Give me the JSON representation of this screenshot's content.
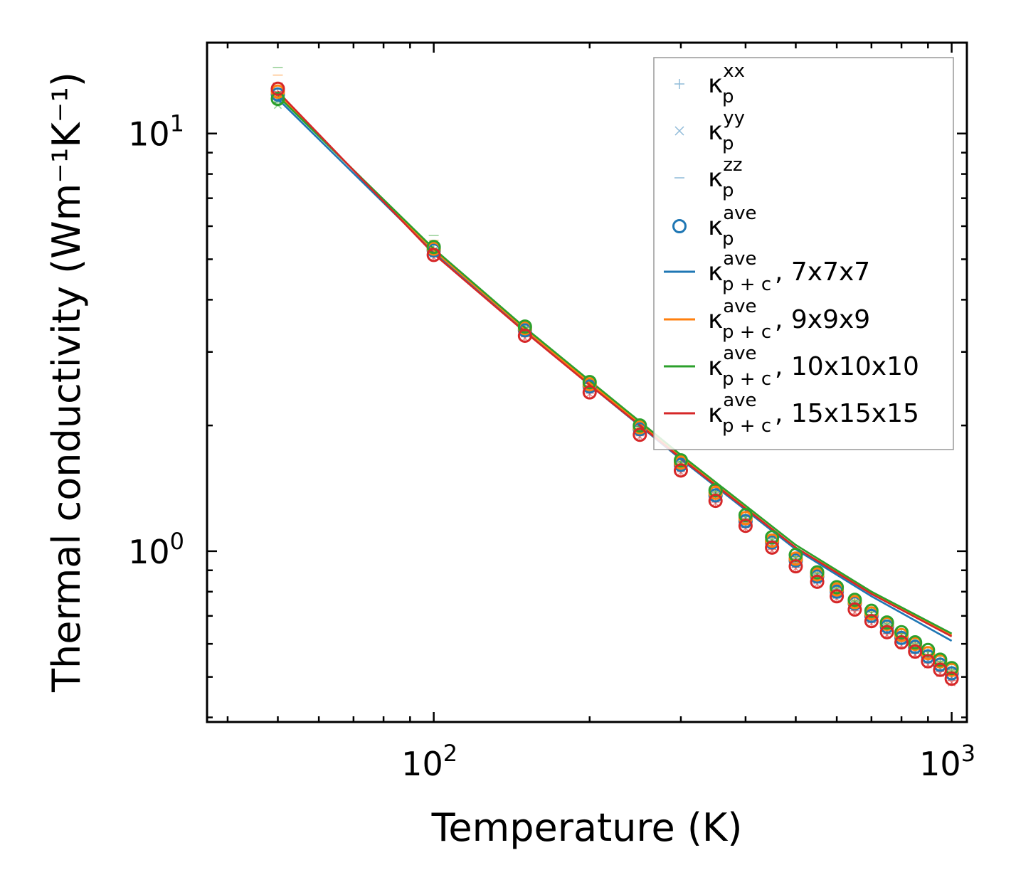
{
  "chart_data": {
    "type": "line",
    "xscale": "log",
    "yscale": "log",
    "xlabel": "Temperature (K)",
    "ylabel": "Thermal conductivity (Wm⁻¹K⁻¹)",
    "xlim": [
      36.5,
      1070
    ],
    "ylim": [
      0.39,
      16.5
    ],
    "x_major_ticks": [
      {
        "value": 100,
        "base": "10",
        "exp": "2"
      },
      {
        "value": 1000,
        "base": "10",
        "exp": "3"
      }
    ],
    "y_major_ticks": [
      {
        "value": 1,
        "base": "10",
        "exp": "0"
      },
      {
        "value": 10,
        "base": "10",
        "exp": "1"
      }
    ],
    "temperatures": [
      50,
      100,
      150,
      200,
      250,
      300,
      350,
      400,
      450,
      500,
      550,
      600,
      650,
      700,
      750,
      800,
      850,
      900,
      950,
      1000
    ],
    "point_series": [
      {
        "name": "7x7x7",
        "color": "#1f77b4",
        "ave": [
          12.4,
          5.25,
          3.38,
          2.48,
          1.96,
          1.61,
          1.36,
          1.18,
          1.05,
          0.95,
          0.87,
          0.8,
          0.75,
          0.7,
          0.66,
          0.62,
          0.59,
          0.56,
          0.535,
          0.51
        ],
        "xx": [
          12.2,
          5.2,
          3.36,
          2.47,
          1.95,
          1.6,
          1.35,
          1.17,
          1.04,
          0.94,
          0.86,
          0.79,
          0.74,
          0.69,
          0.65,
          0.615,
          0.585,
          0.555,
          0.53,
          0.505
        ],
        "yy": [
          12.0,
          5.15,
          3.33,
          2.45,
          1.93,
          1.59,
          1.34,
          1.16,
          1.03,
          0.93,
          0.85,
          0.785,
          0.735,
          0.685,
          0.645,
          0.61,
          0.58,
          0.55,
          0.525,
          0.5
        ],
        "zz": [
          13.0,
          5.45,
          3.45,
          2.52,
          1.99,
          1.63,
          1.38,
          1.2,
          1.06,
          0.96,
          0.88,
          0.81,
          0.755,
          0.705,
          0.665,
          0.625,
          0.595,
          0.565,
          0.54,
          0.515
        ]
      },
      {
        "name": "9x9x9",
        "color": "#ff7f0e",
        "ave": [
          12.6,
          5.3,
          3.42,
          2.51,
          1.98,
          1.63,
          1.38,
          1.2,
          1.06,
          0.96,
          0.88,
          0.81,
          0.755,
          0.71,
          0.67,
          0.63,
          0.6,
          0.57,
          0.545,
          0.52
        ],
        "xx": [
          12.4,
          5.25,
          3.4,
          2.5,
          1.97,
          1.62,
          1.37,
          1.19,
          1.05,
          0.95,
          0.87,
          0.8,
          0.75,
          0.7,
          0.66,
          0.625,
          0.595,
          0.565,
          0.54,
          0.515
        ],
        "yy": [
          12.2,
          5.2,
          3.37,
          2.48,
          1.95,
          1.61,
          1.36,
          1.18,
          1.04,
          0.945,
          0.865,
          0.795,
          0.745,
          0.695,
          0.655,
          0.62,
          0.59,
          0.56,
          0.535,
          0.51
        ],
        "zz": [
          13.8,
          5.55,
          3.5,
          2.56,
          2.02,
          1.66,
          1.4,
          1.22,
          1.08,
          0.97,
          0.89,
          0.82,
          0.765,
          0.715,
          0.675,
          0.635,
          0.605,
          0.575,
          0.55,
          0.525
        ]
      },
      {
        "name": "10x10x10",
        "color": "#2ca02c",
        "ave": [
          12.1,
          5.35,
          3.45,
          2.54,
          2.0,
          1.65,
          1.4,
          1.22,
          1.08,
          0.98,
          0.89,
          0.82,
          0.765,
          0.72,
          0.675,
          0.64,
          0.605,
          0.58,
          0.55,
          0.525
        ],
        "xx": [
          11.9,
          5.3,
          3.43,
          2.52,
          1.99,
          1.64,
          1.39,
          1.21,
          1.07,
          0.97,
          0.885,
          0.815,
          0.76,
          0.715,
          0.67,
          0.635,
          0.6,
          0.575,
          0.545,
          0.52
        ],
        "yy": [
          11.7,
          5.25,
          3.4,
          2.5,
          1.97,
          1.63,
          1.38,
          1.2,
          1.06,
          0.96,
          0.88,
          0.81,
          0.755,
          0.71,
          0.665,
          0.63,
          0.595,
          0.57,
          0.54,
          0.515
        ],
        "zz": [
          14.4,
          5.7,
          3.55,
          2.6,
          2.05,
          1.68,
          1.42,
          1.24,
          1.1,
          0.99,
          0.9,
          0.83,
          0.775,
          0.73,
          0.685,
          0.65,
          0.615,
          0.59,
          0.56,
          0.535
        ]
      },
      {
        "name": "15x15x15",
        "color": "#d62728",
        "ave": [
          12.8,
          5.12,
          3.28,
          2.4,
          1.9,
          1.56,
          1.32,
          1.15,
          1.02,
          0.92,
          0.845,
          0.78,
          0.725,
          0.68,
          0.64,
          0.605,
          0.575,
          0.545,
          0.52,
          0.495
        ],
        "xx": [
          12.6,
          5.08,
          3.26,
          2.39,
          1.89,
          1.55,
          1.31,
          1.14,
          1.01,
          0.915,
          0.84,
          0.775,
          0.72,
          0.675,
          0.635,
          0.6,
          0.57,
          0.54,
          0.515,
          0.49
        ],
        "yy": [
          12.4,
          5.05,
          3.24,
          2.38,
          1.88,
          1.545,
          1.305,
          1.135,
          1.005,
          0.91,
          0.835,
          0.77,
          0.715,
          0.67,
          0.63,
          0.595,
          0.565,
          0.535,
          0.51,
          0.485
        ],
        "zz": [
          13.2,
          5.2,
          3.32,
          2.43,
          1.92,
          1.58,
          1.34,
          1.16,
          1.03,
          0.93,
          0.855,
          0.79,
          0.735,
          0.69,
          0.65,
          0.615,
          0.585,
          0.555,
          0.53,
          0.505
        ]
      }
    ],
    "line_series": [
      {
        "name": "7x7x7",
        "color": "#1f77b4",
        "x": [
          50,
          100,
          150,
          200,
          300,
          500,
          700,
          1000
        ],
        "y": [
          12.1,
          5.2,
          3.36,
          2.5,
          1.66,
          1.01,
          0.78,
          0.61
        ]
      },
      {
        "name": "9x9x9",
        "color": "#ff7f0e",
        "x": [
          50,
          100,
          150,
          200,
          300,
          500,
          700,
          1000
        ],
        "y": [
          12.4,
          5.25,
          3.4,
          2.53,
          1.68,
          1.02,
          0.795,
          0.63
        ]
      },
      {
        "name": "10x10x10",
        "color": "#2ca02c",
        "x": [
          50,
          100,
          150,
          200,
          300,
          500,
          700,
          1000
        ],
        "y": [
          12.3,
          5.3,
          3.43,
          2.56,
          1.7,
          1.035,
          0.8,
          0.635
        ]
      },
      {
        "name": "15x15x15",
        "color": "#d62728",
        "x": [
          50,
          100,
          150,
          200,
          300,
          500,
          700,
          1000
        ],
        "y": [
          12.6,
          5.15,
          3.35,
          2.5,
          1.67,
          1.02,
          0.79,
          0.625
        ]
      }
    ],
    "legend": {
      "location": "upper right",
      "entries": [
        {
          "marker": "plus",
          "color": "#1f77b4",
          "kappa": "κ",
          "sub": "p",
          "sup": "xx",
          "suffix": ""
        },
        {
          "marker": "cross",
          "color": "#1f77b4",
          "kappa": "κ",
          "sub": "p",
          "sup": "yy",
          "suffix": ""
        },
        {
          "marker": "dash",
          "color": "#1f77b4",
          "kappa": "κ",
          "sub": "p",
          "sup": "zz",
          "suffix": ""
        },
        {
          "marker": "circle",
          "color": "#1f77b4",
          "kappa": "κ",
          "sub": "p",
          "sup": "ave",
          "suffix": ""
        },
        {
          "marker": "line",
          "color": "#1f77b4",
          "kappa": "κ",
          "sub": "p + c",
          "sup": "ave",
          "suffix": ", 7x7x7"
        },
        {
          "marker": "line",
          "color": "#ff7f0e",
          "kappa": "κ",
          "sub": "p + c",
          "sup": "ave",
          "suffix": ", 9x9x9"
        },
        {
          "marker": "line",
          "color": "#2ca02c",
          "kappa": "κ",
          "sub": "p + c",
          "sup": "ave",
          "suffix": ", 10x10x10"
        },
        {
          "marker": "line",
          "color": "#d62728",
          "kappa": "κ",
          "sub": "p + c",
          "sup": "ave",
          "suffix": ", 15x15x15"
        }
      ]
    }
  }
}
